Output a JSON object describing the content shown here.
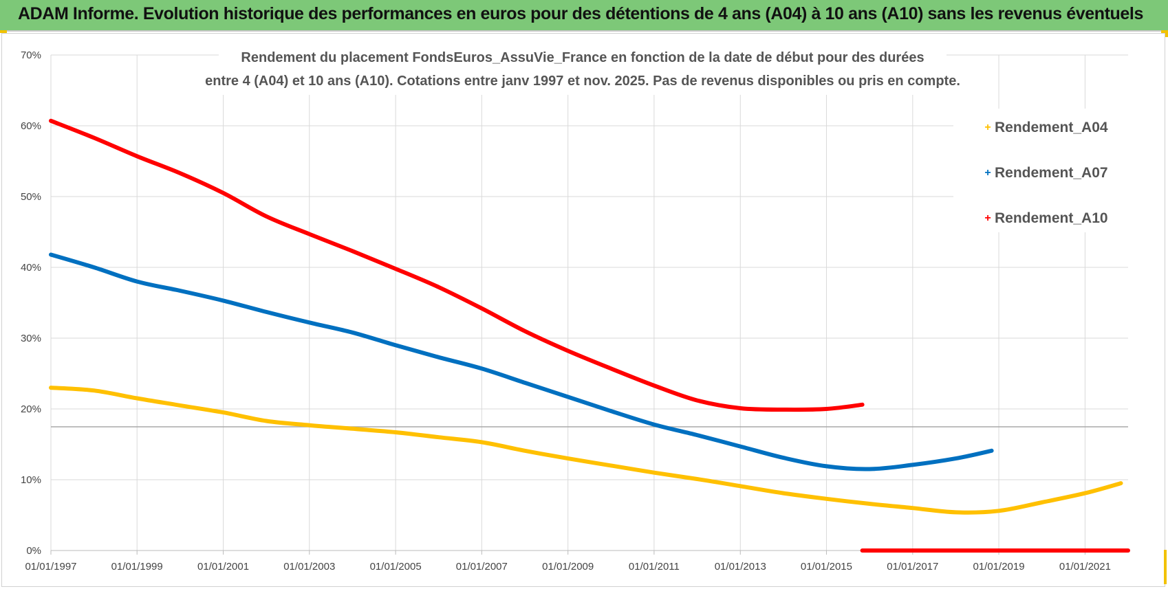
{
  "header": {
    "title": "ADAM Informe. Evolution historique des performances en euros pour des détentions de 4 ans (A04) à 10 ans (A10) sans les revenus éventuels"
  },
  "chart_data": {
    "type": "line",
    "title": "",
    "subtitle_lines": [
      "Rendement du placement FondsEuros_AssuVie_France en fonction de la date de début pour des durées",
      "entre 4 (A04) et 10 ans (A10). Cotations entre janv 1997 et nov. 2025. Pas de revenus disponibles ou pris en compte."
    ],
    "xlabel": "",
    "ylabel": "",
    "x_range": [
      "1997-01-01",
      "2022-01-01"
    ],
    "x_ticks": [
      "01/01/1997",
      "01/01/1999",
      "01/01/2001",
      "01/01/2003",
      "01/01/2005",
      "01/01/2007",
      "01/01/2009",
      "01/01/2011",
      "01/01/2013",
      "01/01/2015",
      "01/01/2017",
      "01/01/2019",
      "01/01/2021"
    ],
    "y_ticks": [
      "0%",
      "10%",
      "20%",
      "30%",
      "40%",
      "50%",
      "60%",
      "70%"
    ],
    "ylim": [
      0,
      0.7
    ],
    "grid": true,
    "legend_position": "top-right",
    "series": [
      {
        "name": "Rendement_A04",
        "color": "#ffc000",
        "points": [
          [
            "1997-01-01",
            0.23
          ],
          [
            "1998-01-01",
            0.226
          ],
          [
            "1999-01-01",
            0.215
          ],
          [
            "2000-01-01",
            0.205
          ],
          [
            "2001-01-01",
            0.195
          ],
          [
            "2002-01-01",
            0.183
          ],
          [
            "2003-01-01",
            0.177
          ],
          [
            "2004-01-01",
            0.172
          ],
          [
            "2005-01-01",
            0.167
          ],
          [
            "2006-01-01",
            0.16
          ],
          [
            "2007-01-01",
            0.153
          ],
          [
            "2008-01-01",
            0.141
          ],
          [
            "2009-01-01",
            0.13
          ],
          [
            "2010-01-01",
            0.12
          ],
          [
            "2011-01-01",
            0.11
          ],
          [
            "2012-01-01",
            0.101
          ],
          [
            "2013-01-01",
            0.091
          ],
          [
            "2014-01-01",
            0.081
          ],
          [
            "2015-01-01",
            0.073
          ],
          [
            "2016-01-01",
            0.066
          ],
          [
            "2017-01-01",
            0.06
          ],
          [
            "2018-01-01",
            0.054
          ],
          [
            "2019-01-01",
            0.056
          ],
          [
            "2020-01-01",
            0.068
          ],
          [
            "2021-01-01",
            0.081
          ],
          [
            "2021-11-01",
            0.095
          ]
        ]
      },
      {
        "name": "Rendement_A07",
        "color": "#0070c0",
        "points": [
          [
            "1997-01-01",
            0.418
          ],
          [
            "1998-01-01",
            0.4
          ],
          [
            "1999-01-01",
            0.38
          ],
          [
            "2000-01-01",
            0.367
          ],
          [
            "2001-01-01",
            0.353
          ],
          [
            "2002-01-01",
            0.337
          ],
          [
            "2003-01-01",
            0.322
          ],
          [
            "2004-01-01",
            0.308
          ],
          [
            "2005-01-01",
            0.29
          ],
          [
            "2006-01-01",
            0.273
          ],
          [
            "2007-01-01",
            0.257
          ],
          [
            "2008-01-01",
            0.237
          ],
          [
            "2009-01-01",
            0.217
          ],
          [
            "2010-01-01",
            0.197
          ],
          [
            "2011-01-01",
            0.178
          ],
          [
            "2012-01-01",
            0.163
          ],
          [
            "2013-01-01",
            0.147
          ],
          [
            "2014-01-01",
            0.131
          ],
          [
            "2015-01-01",
            0.119
          ],
          [
            "2016-01-01",
            0.115
          ],
          [
            "2017-01-01",
            0.121
          ],
          [
            "2018-01-01",
            0.13
          ],
          [
            "2018-11-01",
            0.141
          ]
        ]
      },
      {
        "name": "Rendement_A10",
        "color": "#ff0000",
        "points": [
          [
            "1997-01-01",
            0.607
          ],
          [
            "1998-01-01",
            0.583
          ],
          [
            "1999-01-01",
            0.557
          ],
          [
            "2000-01-01",
            0.533
          ],
          [
            "2001-01-01",
            0.505
          ],
          [
            "2002-01-01",
            0.472
          ],
          [
            "2003-01-01",
            0.447
          ],
          [
            "2004-01-01",
            0.423
          ],
          [
            "2005-01-01",
            0.398
          ],
          [
            "2006-01-01",
            0.372
          ],
          [
            "2007-01-01",
            0.342
          ],
          [
            "2008-01-01",
            0.31
          ],
          [
            "2009-01-01",
            0.282
          ],
          [
            "2010-01-01",
            0.257
          ],
          [
            "2011-01-01",
            0.233
          ],
          [
            "2012-01-01",
            0.212
          ],
          [
            "2013-01-01",
            0.201
          ],
          [
            "2014-01-01",
            0.199
          ],
          [
            "2015-01-01",
            0.2
          ],
          [
            "2015-11-01",
            0.206
          ]
        ],
        "extra_segment": [
          [
            "2015-11-01",
            0.0
          ],
          [
            "2022-01-01",
            0.0
          ]
        ]
      }
    ]
  }
}
